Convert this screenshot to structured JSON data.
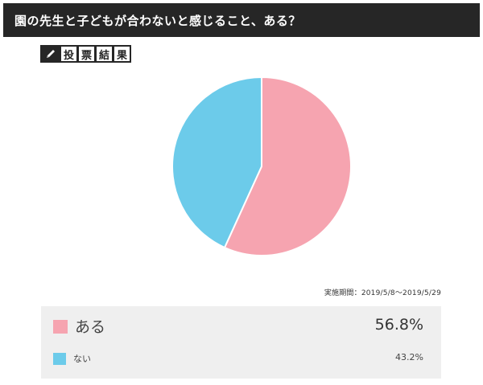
{
  "header": {
    "title": "園の先生と子どもが合わないと感じること、ある？"
  },
  "result_tag": {
    "icon": "pencil-icon",
    "chars": [
      "投",
      "票",
      "結",
      "果"
    ]
  },
  "period_text": "実施期間：2019/5/8〜2019/5/29",
  "colors": {
    "aru": "#f6a4b0",
    "nai": "#6ccbea",
    "title_bg": "#262626",
    "legend_bg": "#efefef"
  },
  "chart_data": {
    "type": "pie",
    "title": "",
    "slices": [
      {
        "label": "ある",
        "value": 56.8,
        "display": "56.8%",
        "color": "#f6a4b0"
      },
      {
        "label": "ない",
        "value": 43.2,
        "display": "43.2%",
        "color": "#6ccbea"
      }
    ],
    "start": "12 o'clock",
    "direction": "clockwise",
    "legend": "below"
  }
}
